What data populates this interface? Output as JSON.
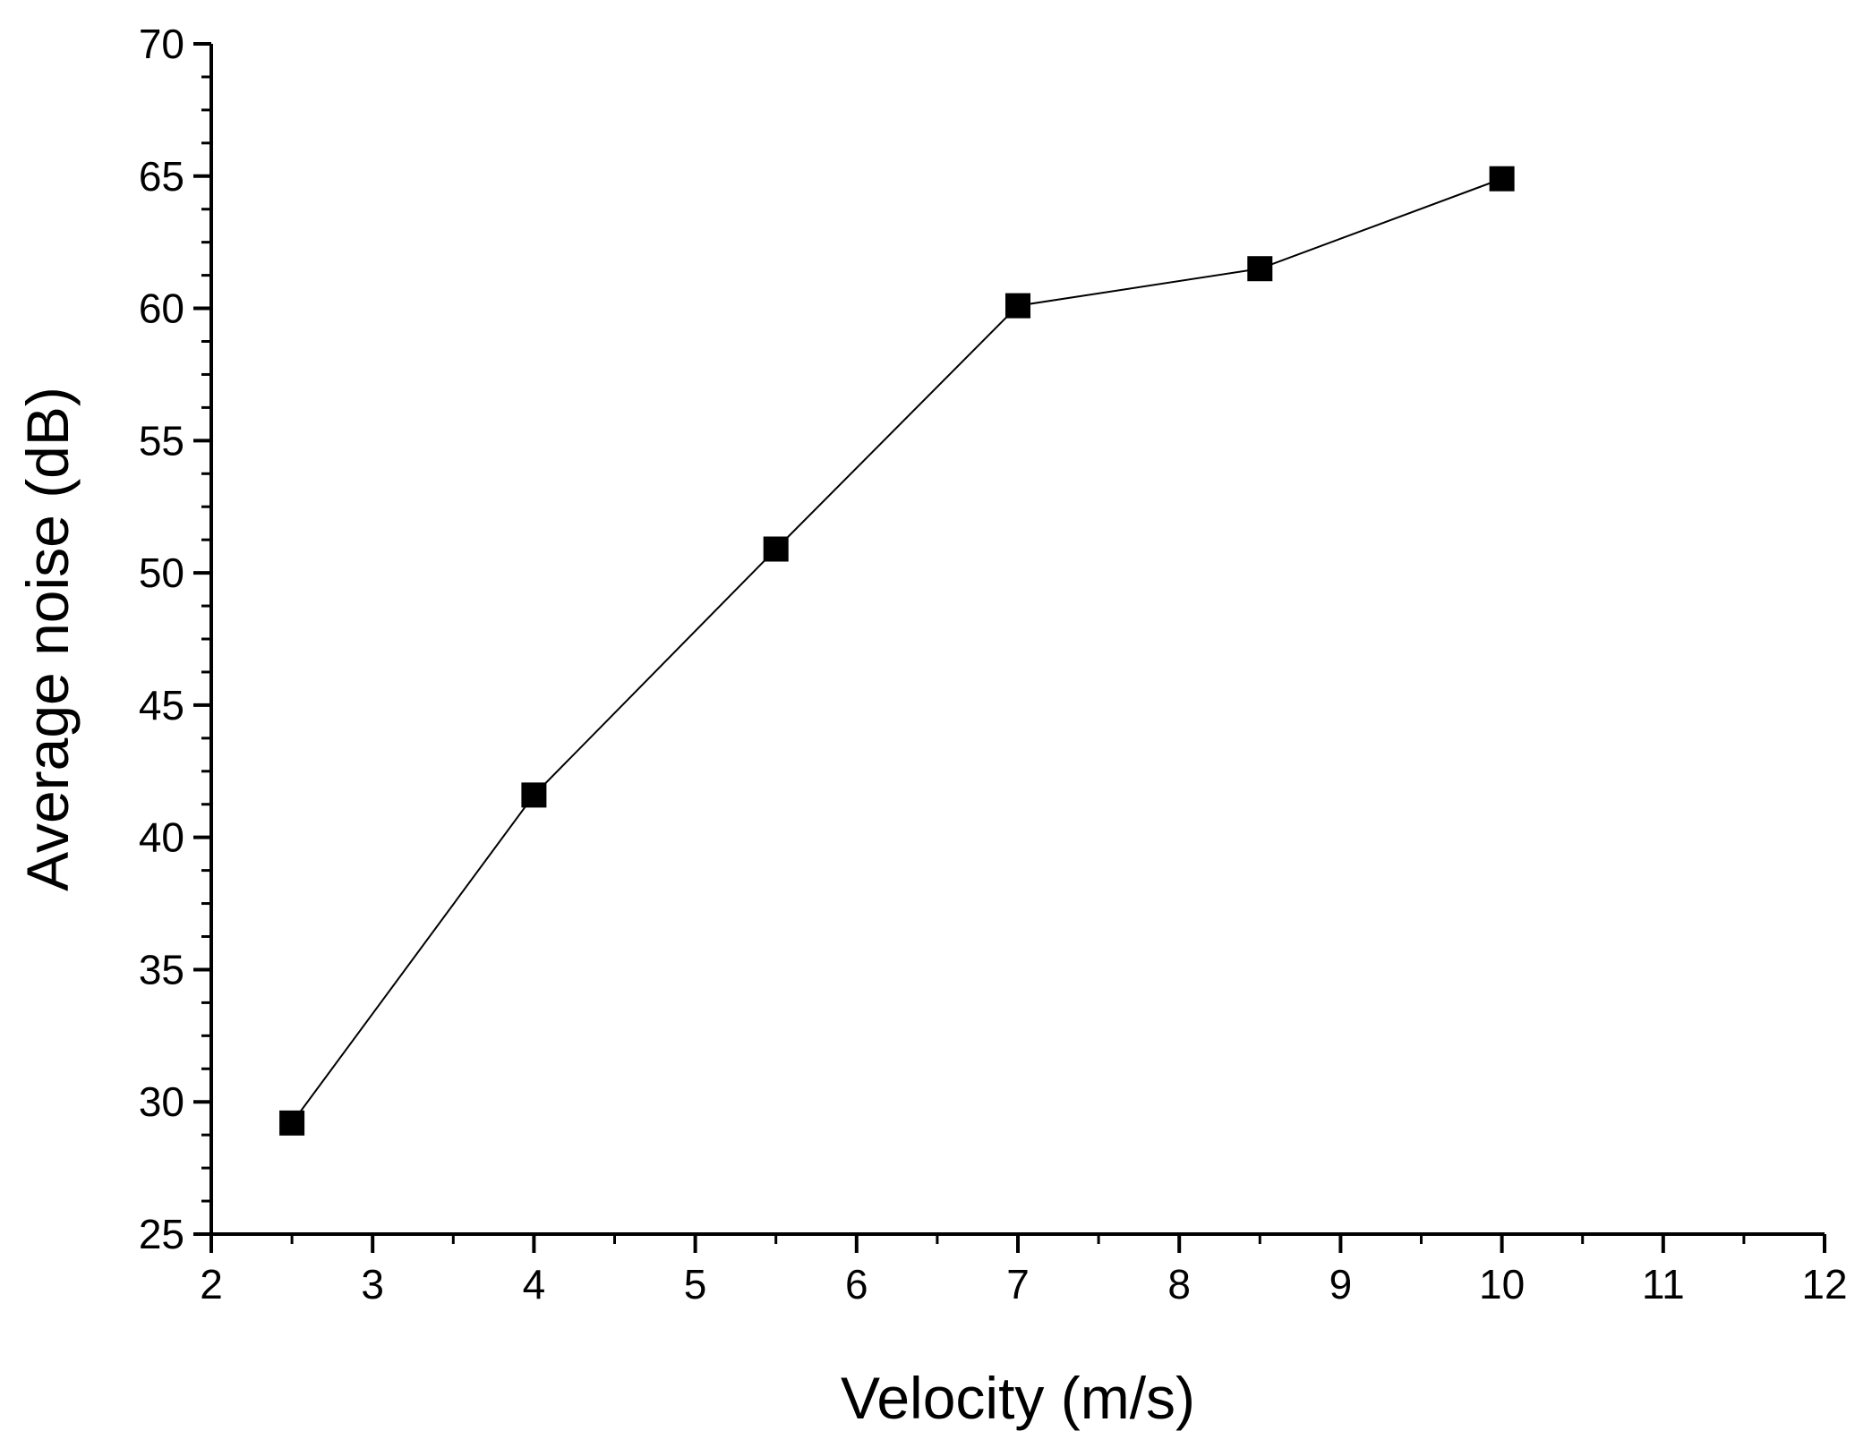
{
  "chart_data": {
    "type": "line",
    "title": "",
    "xlabel": "Velocity (m/s)",
    "ylabel": "Average noise (dB)",
    "xlim": [
      2,
      12
    ],
    "ylim": [
      25,
      70
    ],
    "x_ticks": [
      2,
      3,
      4,
      5,
      6,
      7,
      8,
      9,
      10,
      11,
      12
    ],
    "y_ticks": [
      25,
      30,
      35,
      40,
      45,
      50,
      55,
      60,
      65,
      70
    ],
    "x_tick_labels": [
      "2",
      "3",
      "4",
      "5",
      "6",
      "7",
      "8",
      "9",
      "10",
      "11",
      "12"
    ],
    "y_tick_labels": [
      "25",
      "30",
      "35",
      "40",
      "45",
      "50",
      "55",
      "60",
      "65",
      "70"
    ],
    "grid": false,
    "legend": "none",
    "series": [
      {
        "name": "Average noise",
        "marker": "square",
        "color": "#000000",
        "x": [
          2.5,
          4,
          5.5,
          7,
          8.5,
          10
        ],
        "y": [
          29.2,
          41.6,
          50.9,
          60.1,
          61.5,
          64.9
        ]
      }
    ]
  }
}
